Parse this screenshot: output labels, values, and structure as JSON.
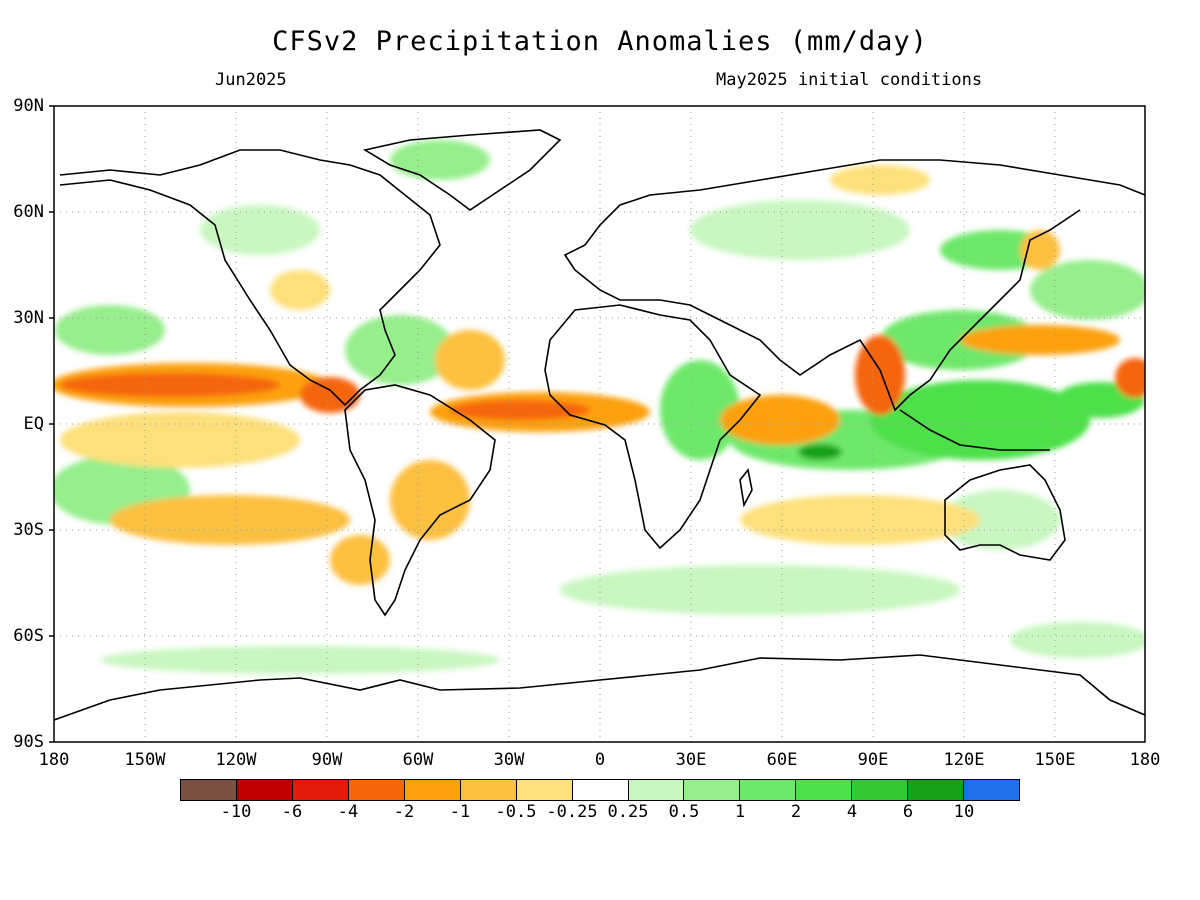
{
  "title": "CFSv2 Precipitation Anomalies (mm/day)",
  "valid_month": "Jun2025",
  "init_label": "May2025 initial conditions",
  "lat_labels": [
    "90N",
    "60N",
    "30N",
    "EQ",
    "30S",
    "60S",
    "90S"
  ],
  "lon_labels": [
    "180",
    "150W",
    "120W",
    "90W",
    "60W",
    "30W",
    "0",
    "30E",
    "60E",
    "90E",
    "120E",
    "150E",
    "180"
  ],
  "colorbar": {
    "colors": [
      "#7a5045",
      "#c00000",
      "#e41a0a",
      "#f5650a",
      "#fca10c",
      "#fcc040",
      "#fde07a",
      "#ffffff",
      "#c8f7c0",
      "#96ee8c",
      "#6ee86a",
      "#4ee04a",
      "#35c835",
      "#17a117",
      "#1f6fe8"
    ],
    "labels": [
      "-10",
      "-6",
      "-4",
      "-2",
      "-1",
      "-0.5",
      "-0.25",
      "0.25",
      "0.5",
      "1",
      "2",
      "4",
      "6",
      "10"
    ]
  },
  "colors": {
    "land_outline": "#000000",
    "grid": "#9a9a9a",
    "dry": "#f5650a",
    "wet": "#4ee04a"
  }
}
